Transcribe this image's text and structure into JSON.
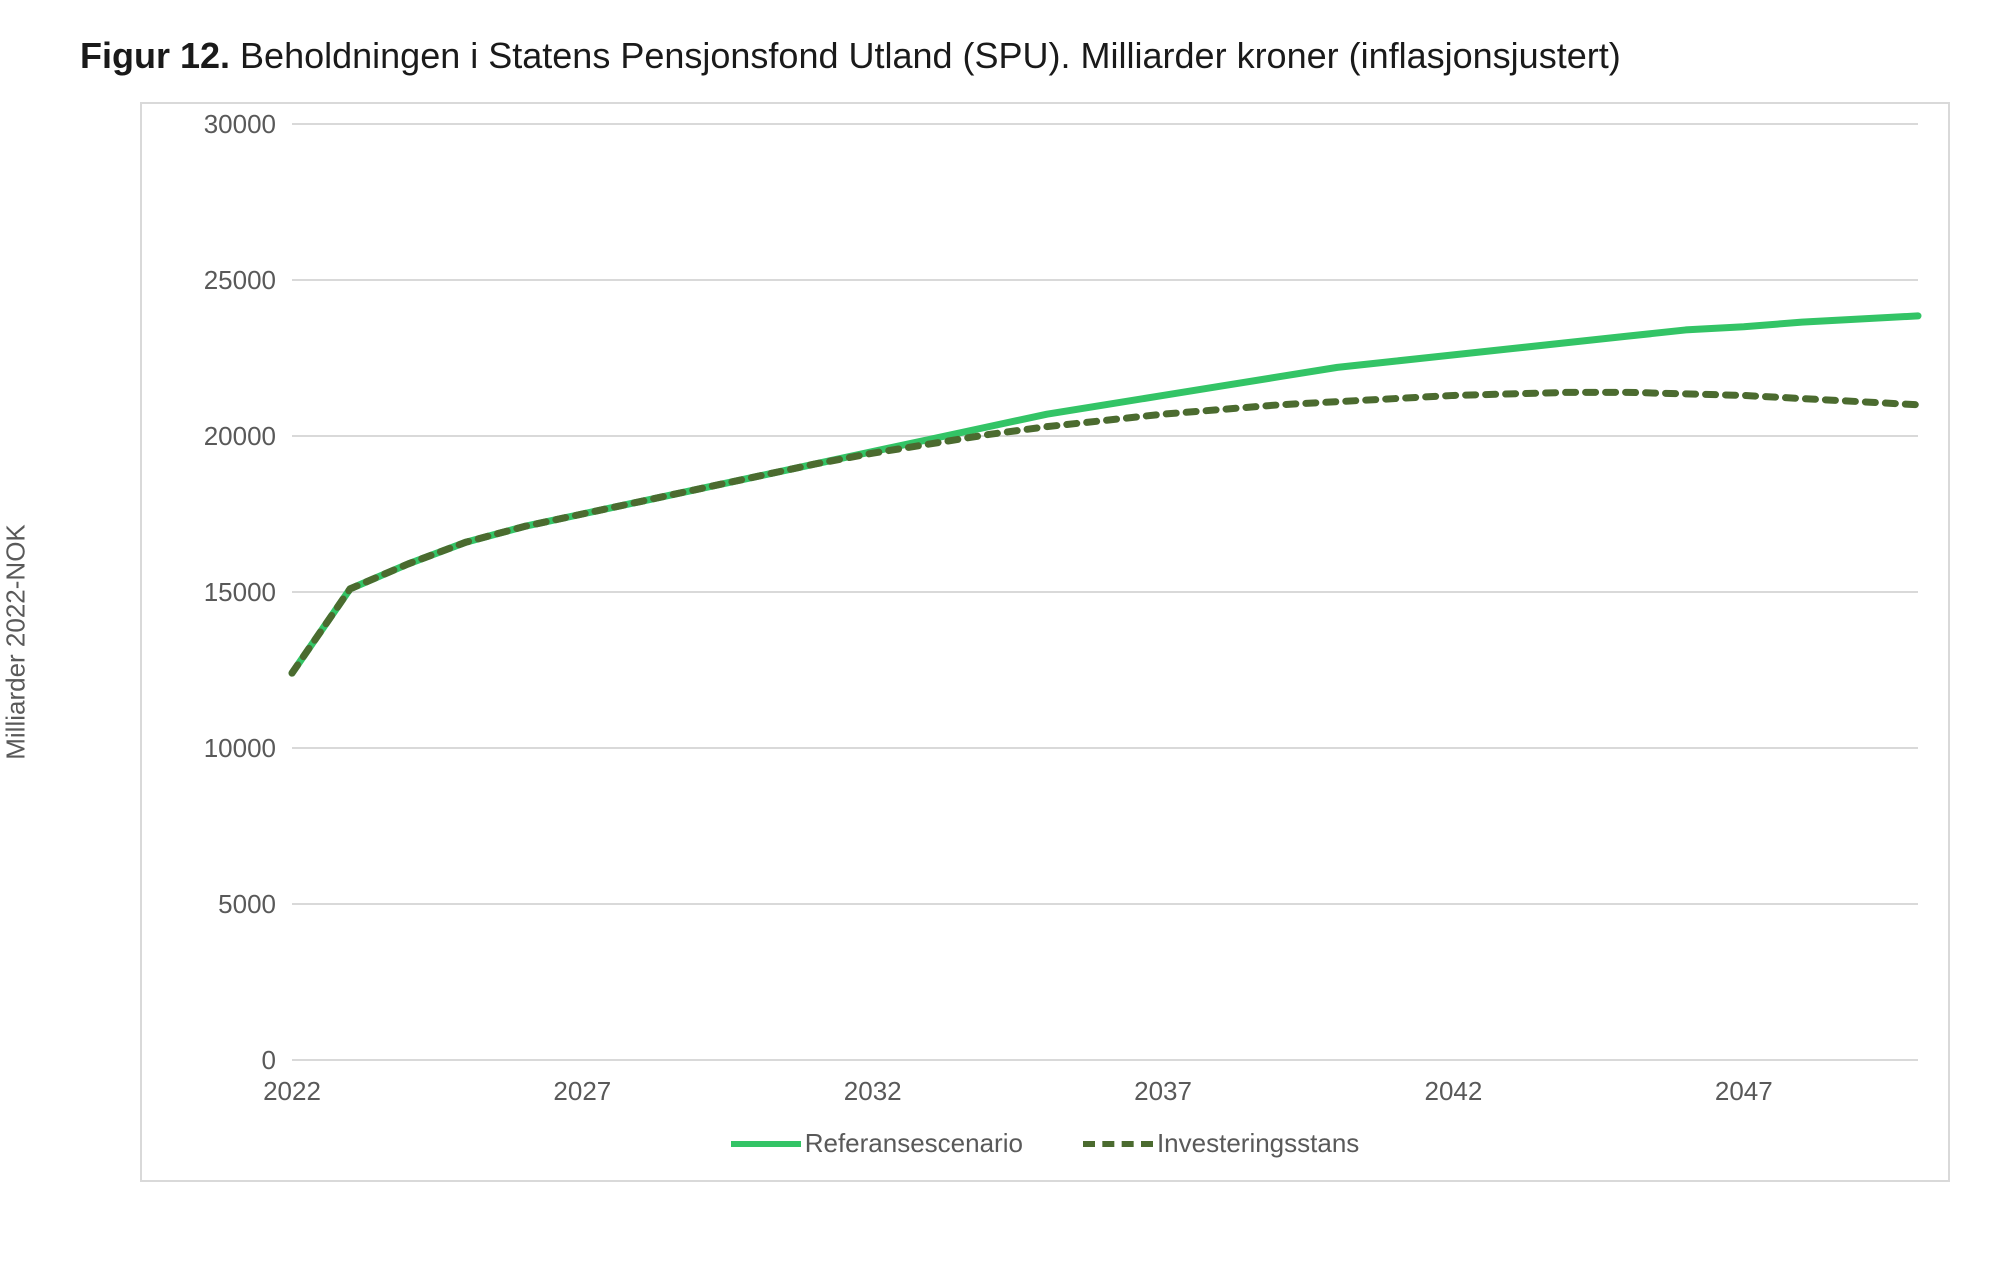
{
  "title": {
    "prefix_bold": "Figur 12.",
    "rest": " Beholdningen i Statens Pensjonsfond Utland (SPU). Milliarder kroner (inflasjonsjustert)"
  },
  "chart": {
    "type": "line",
    "ylabel": "Milliarder 2022-NOK",
    "x": {
      "start": 2022,
      "end": 2050,
      "tick_step": 5,
      "ticks_shown": [
        2022,
        2027,
        2032,
        2037,
        2042,
        2047
      ]
    },
    "y": {
      "min": 0,
      "max": 30000,
      "tick_step": 5000
    },
    "grid_color": "#d9d9d9",
    "border_color": "#d9d9d9",
    "axis_text_color": "#595959",
    "background_color": "#ffffff",
    "tick_fontsize": 26,
    "ylabel_fontsize": 26,
    "legend_fontsize": 26,
    "line_width": 7,
    "series": [
      {
        "name": "Referansescenario",
        "color": "#33c466",
        "dash": "none",
        "data": [
          [
            2022,
            12400
          ],
          [
            2023,
            15100
          ],
          [
            2024,
            15900
          ],
          [
            2025,
            16600
          ],
          [
            2026,
            17100
          ],
          [
            2027,
            17500
          ],
          [
            2028,
            17900
          ],
          [
            2029,
            18300
          ],
          [
            2030,
            18700
          ],
          [
            2031,
            19100
          ],
          [
            2032,
            19500
          ],
          [
            2033,
            19900
          ],
          [
            2034,
            20300
          ],
          [
            2035,
            20700
          ],
          [
            2036,
            21000
          ],
          [
            2037,
            21300
          ],
          [
            2038,
            21600
          ],
          [
            2039,
            21900
          ],
          [
            2040,
            22200
          ],
          [
            2041,
            22400
          ],
          [
            2042,
            22600
          ],
          [
            2043,
            22800
          ],
          [
            2044,
            23000
          ],
          [
            2045,
            23200
          ],
          [
            2046,
            23400
          ],
          [
            2047,
            23500
          ],
          [
            2048,
            23650
          ],
          [
            2049,
            23750
          ],
          [
            2050,
            23850
          ]
        ]
      },
      {
        "name": "Investeringsstans",
        "color": "#4b6b2f",
        "dash": "10,10",
        "data": [
          [
            2022,
            12400
          ],
          [
            2023,
            15100
          ],
          [
            2024,
            15900
          ],
          [
            2025,
            16600
          ],
          [
            2026,
            17100
          ],
          [
            2027,
            17500
          ],
          [
            2028,
            17900
          ],
          [
            2029,
            18300
          ],
          [
            2030,
            18700
          ],
          [
            2031,
            19100
          ],
          [
            2032,
            19450
          ],
          [
            2033,
            19750
          ],
          [
            2034,
            20050
          ],
          [
            2035,
            20300
          ],
          [
            2036,
            20500
          ],
          [
            2037,
            20700
          ],
          [
            2038,
            20850
          ],
          [
            2039,
            21000
          ],
          [
            2040,
            21100
          ],
          [
            2041,
            21200
          ],
          [
            2042,
            21300
          ],
          [
            2043,
            21350
          ],
          [
            2044,
            21400
          ],
          [
            2045,
            21400
          ],
          [
            2046,
            21350
          ],
          [
            2047,
            21300
          ],
          [
            2048,
            21200
          ],
          [
            2049,
            21100
          ],
          [
            2050,
            21000
          ]
        ]
      }
    ],
    "legend_items": [
      "Referansescenario",
      "Investeringsstans"
    ]
  }
}
